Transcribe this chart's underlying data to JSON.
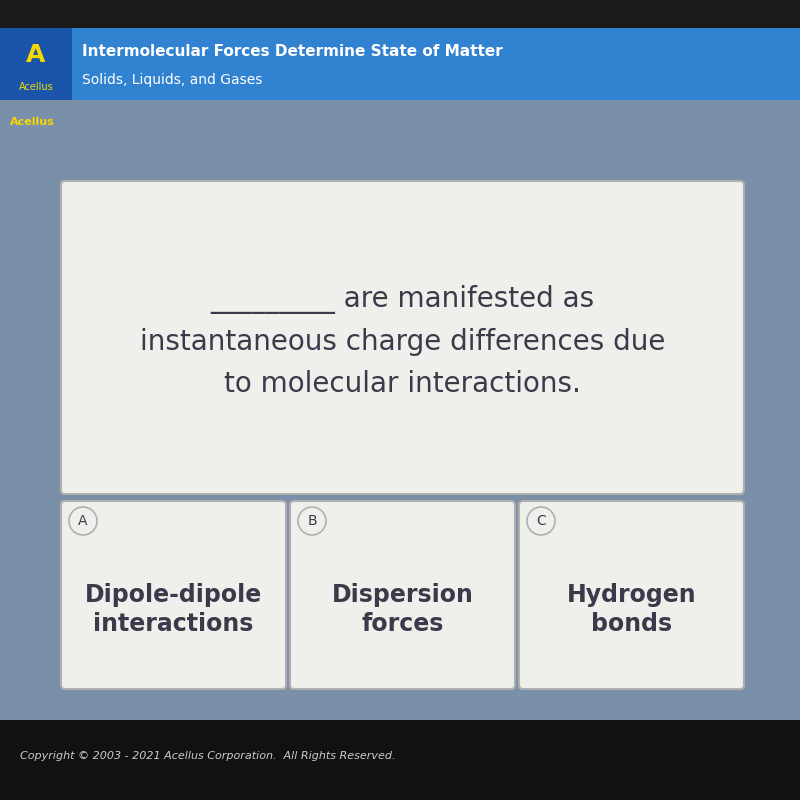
{
  "bg_color": "#7a8fa8",
  "header_bg": "#3182d0",
  "header_title": "Intermolecular Forces Determine State of Matter",
  "header_subtitle": "Solids, Liquids, and Gases",
  "header_text_color": "#ffffff",
  "main_box_color": "#efefec",
  "main_box_border": "#b0b0b0",
  "main_text_line1": "_________ are manifested as",
  "main_text_line2": "instantaneous charge differences due",
  "main_text_line3": "to molecular interactions.",
  "main_text_color": "#3a3a4a",
  "main_text_fontsize": 20,
  "answer_labels": [
    "A",
    "B",
    "C"
  ],
  "answer_texts": [
    "Dipole-dipole\ninteractions",
    "Dispersion\nforces",
    "Hydrogen\nbonds"
  ],
  "answer_box_color": "#efefec",
  "answer_box_border": "#b0b0b0",
  "answer_text_color": "#3a3a4a",
  "answer_text_fontsize": 17,
  "label_fontsize": 10,
  "copyright_text": "Copyright © 2003 - 2021 Acellus Corporation.  All Rights Reserved.",
  "copyright_color": "#cccccc",
  "copyright_fontsize": 8,
  "top_dark": "#1a1a1a",
  "bottom_dark": "#111111",
  "logo_bg": "#1a55aa",
  "logo_letter_color": "#f5d800",
  "logo_text_color": "#f5d800",
  "acellus_label_color": "#f5d800"
}
